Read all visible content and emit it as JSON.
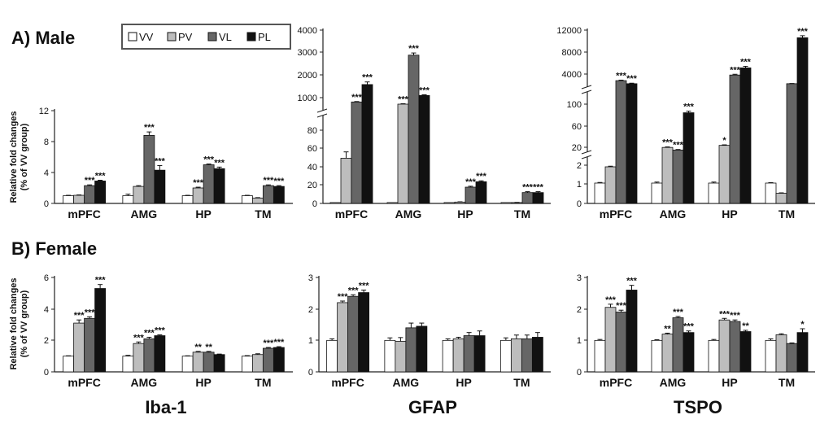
{
  "rows": {
    "male": "A) Male",
    "female": "B) Female"
  },
  "ylabel": [
    "Relative fold changes",
    "(% of VV group)"
  ],
  "legend": [
    {
      "label": "VV",
      "color": "#ffffff"
    },
    {
      "label": "PV",
      "color": "#bdbdbd"
    },
    {
      "label": "VL",
      "color": "#666666"
    },
    {
      "label": "PL",
      "color": "#111111"
    }
  ],
  "markers": [
    "Iba-1",
    "GFAP",
    "TSPO"
  ],
  "chart_data": [
    {
      "id": "male-iba1",
      "type": "bar",
      "marker": "Iba-1",
      "sex": "Male",
      "categories": [
        "mPFC",
        "AMG",
        "HP",
        "TM"
      ],
      "series": [
        {
          "name": "VV",
          "values": [
            1,
            1,
            1,
            1
          ],
          "err": [
            0.05,
            0.2,
            0.05,
            0.05
          ],
          "sig": [
            "",
            "",
            "",
            ""
          ]
        },
        {
          "name": "PV",
          "values": [
            1.05,
            2.2,
            2.0,
            0.7
          ],
          "err": [
            0.05,
            0.1,
            0.1,
            0.05
          ],
          "sig": [
            "",
            "",
            "***",
            ""
          ]
        },
        {
          "name": "VL",
          "values": [
            2.3,
            8.8,
            5.0,
            2.3
          ],
          "err": [
            0.1,
            0.45,
            0.1,
            0.1
          ],
          "sig": [
            "***",
            "***",
            "***",
            "***"
          ]
        },
        {
          "name": "PL",
          "values": [
            2.9,
            4.3,
            4.5,
            2.2
          ],
          "err": [
            0.1,
            0.6,
            0.2,
            0.1
          ],
          "sig": [
            "***",
            "***",
            "***",
            "***"
          ]
        }
      ],
      "yticks": [
        "0",
        "4",
        "8",
        "12"
      ]
    },
    {
      "id": "male-gfap",
      "type": "bar",
      "marker": "GFAP",
      "sex": "Male",
      "categories": [
        "mPFC",
        "AMG",
        "HP",
        "TM"
      ],
      "series": [
        {
          "name": "VV",
          "values": [
            1,
            1,
            1,
            1
          ],
          "err": [
            0,
            0,
            0,
            0
          ],
          "sig": [
            "",
            "",
            "",
            ""
          ]
        },
        {
          "name": "PV",
          "values": [
            50,
            600,
            1.5,
            1
          ],
          "err": [
            7,
            20,
            0.3,
            0.2
          ],
          "sig": [
            "",
            "***",
            "",
            ""
          ]
        },
        {
          "name": "VL",
          "values": [
            700,
            2850,
            18,
            12
          ],
          "err": [
            20,
            100,
            1,
            1
          ],
          "sig": [
            "***",
            "***",
            "***",
            "***"
          ]
        },
        {
          "name": "PL",
          "values": [
            1500,
            1000,
            24,
            12
          ],
          "err": [
            120,
            30,
            1,
            1
          ],
          "sig": [
            "***",
            "***",
            "***",
            "***"
          ]
        }
      ],
      "yticks": [
        "0",
        "20",
        "40",
        "60",
        "80",
        "1000",
        "2000",
        "3000",
        "4000"
      ]
    },
    {
      "id": "male-tspo",
      "type": "bar",
      "marker": "TSPO",
      "sex": "Male",
      "categories": [
        "mPFC",
        "AMG",
        "HP",
        "TM"
      ],
      "series": [
        {
          "name": "VV",
          "values": [
            1,
            1,
            1,
            1
          ],
          "err": [
            0.03,
            0.05,
            0.05,
            0.02
          ],
          "sig": [
            "",
            "",
            "",
            ""
          ]
        },
        {
          "name": "PV",
          "values": [
            1.8,
            16,
            20,
            0.5
          ],
          "err": [
            0.03,
            1,
            1,
            0.02
          ],
          "sig": [
            "",
            "***",
            "*",
            ""
          ]
        },
        {
          "name": "VL",
          "values": [
            2100,
            11,
            3200,
            1500
          ],
          "err": [
            100,
            1,
            150,
            40
          ],
          "sig": [
            "***",
            "***",
            "***",
            ""
          ]
        },
        {
          "name": "PL",
          "values": [
            1500,
            83,
            4600,
            10500
          ],
          "err": [
            100,
            3,
            300,
            400
          ],
          "sig": [
            "***",
            "***",
            "***",
            "***"
          ]
        }
      ],
      "yticks": [
        "0",
        "1",
        "2",
        "20",
        "60",
        "100",
        "4000",
        "8000",
        "12000"
      ]
    },
    {
      "id": "female-iba1",
      "type": "bar",
      "marker": "Iba-1",
      "sex": "Female",
      "categories": [
        "mPFC",
        "AMG",
        "HP",
        "TM"
      ],
      "series": [
        {
          "name": "VV",
          "values": [
            1,
            1,
            1,
            1
          ],
          "err": [
            0.02,
            0.05,
            0.02,
            0.03
          ],
          "sig": [
            "",
            "",
            "",
            ""
          ]
        },
        {
          "name": "PV",
          "values": [
            3.1,
            1.8,
            1.25,
            1.1
          ],
          "err": [
            0.2,
            0.1,
            0.05,
            0.05
          ],
          "sig": [
            "***",
            "***",
            "**",
            ""
          ]
        },
        {
          "name": "VL",
          "values": [
            3.4,
            2.1,
            1.25,
            1.5
          ],
          "err": [
            0.1,
            0.1,
            0.05,
            0.05
          ],
          "sig": [
            "***",
            "***",
            "**",
            "***"
          ]
        },
        {
          "name": "PL",
          "values": [
            5.3,
            2.3,
            1.1,
            1.55
          ],
          "err": [
            0.25,
            0.05,
            0.03,
            0.05
          ],
          "sig": [
            "***",
            "***",
            "",
            "***"
          ]
        }
      ],
      "yticks": [
        "0",
        "2",
        "4",
        "6"
      ]
    },
    {
      "id": "female-gfap",
      "type": "bar",
      "marker": "GFAP",
      "sex": "Female",
      "categories": [
        "mPFC",
        "AMG",
        "HP",
        "TM"
      ],
      "series": [
        {
          "name": "VV",
          "values": [
            1,
            1,
            1,
            1
          ],
          "err": [
            0.05,
            0.08,
            0.05,
            0.08
          ],
          "sig": [
            "",
            "",
            "",
            ""
          ]
        },
        {
          "name": "PV",
          "values": [
            2.2,
            0.97,
            1.05,
            1.05
          ],
          "err": [
            0.05,
            0.12,
            0.05,
            0.12
          ],
          "sig": [
            "***",
            "",
            "",
            ""
          ]
        },
        {
          "name": "VL",
          "values": [
            2.4,
            1.4,
            1.15,
            1.05
          ],
          "err": [
            0.05,
            0.15,
            0.1,
            0.12
          ],
          "sig": [
            "***",
            "",
            "",
            ""
          ]
        },
        {
          "name": "PL",
          "values": [
            2.52,
            1.45,
            1.15,
            1.1
          ],
          "err": [
            0.08,
            0.1,
            0.15,
            0.15
          ],
          "sig": [
            "***",
            "",
            "",
            ""
          ]
        }
      ],
      "yticks": [
        "0",
        "1",
        "2",
        "3"
      ]
    },
    {
      "id": "female-tspo",
      "type": "bar",
      "marker": "TSPO",
      "sex": "Female",
      "categories": [
        "mPFC",
        "AMG",
        "HP",
        "TM"
      ],
      "series": [
        {
          "name": "VV",
          "values": [
            1,
            1,
            1,
            1
          ],
          "err": [
            0.03,
            0.02,
            0.03,
            0.05
          ],
          "sig": [
            "",
            "",
            "",
            ""
          ]
        },
        {
          "name": "PV",
          "values": [
            2.05,
            1.2,
            1.65,
            1.18
          ],
          "err": [
            0.1,
            0.03,
            0.05,
            0.03
          ],
          "sig": [
            "***",
            "**",
            "***",
            ""
          ]
        },
        {
          "name": "VL",
          "values": [
            1.9,
            1.72,
            1.6,
            0.9
          ],
          "err": [
            0.06,
            0.04,
            0.05,
            0.02
          ],
          "sig": [
            "***",
            "***",
            "***",
            ""
          ]
        },
        {
          "name": "PL",
          "values": [
            2.6,
            1.25,
            1.28,
            1.25
          ],
          "err": [
            0.15,
            0.05,
            0.04,
            0.12
          ],
          "sig": [
            "***",
            "***",
            "**",
            "*"
          ]
        }
      ],
      "yticks": [
        "0",
        "1",
        "2",
        "3"
      ]
    }
  ]
}
